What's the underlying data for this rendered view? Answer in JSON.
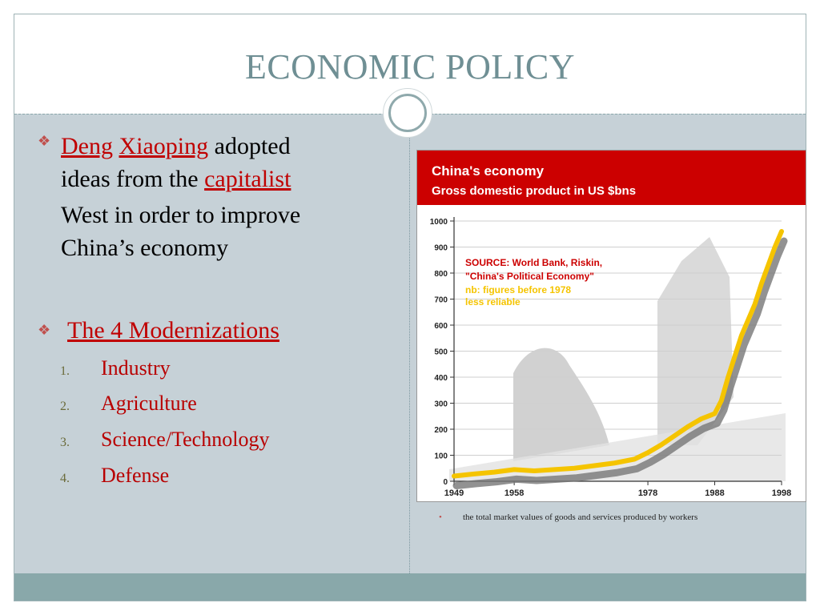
{
  "slide": {
    "title": "ECONOMIC POLICY",
    "bullet1": {
      "name1": "Deng",
      "name2": "Xiaoping",
      "text_a": " adopted",
      "line2_a": "ideas from the ",
      "capitalist": "capitalist",
      "line3": "West in order to improve",
      "line4": "China’s economy"
    },
    "bullet2": {
      "heading": "The 4 Modernizations",
      "items": [
        {
          "num": "1.",
          "label": "Industry"
        },
        {
          "num": "2.",
          "label": "Agriculture"
        },
        {
          "num": "3.",
          "label": "Science/Technology"
        },
        {
          "num": "4.",
          "label": "Defense"
        }
      ]
    },
    "caption": "the total market values of goods and services produced by workers",
    "colors": {
      "accent": "#c00000",
      "title": "#6f8f94",
      "body_bg": "#c6d1d7",
      "footer": "#89a8aa"
    }
  },
  "chart_data": {
    "type": "line",
    "title": "China's economy",
    "subtitle": "Gross domestic product in US $bns",
    "x_ticks": [
      "1949",
      "1958",
      "1978",
      "1988",
      "1998"
    ],
    "y_ticks": [
      "0",
      "100",
      "200",
      "300",
      "400",
      "500",
      "600",
      "700",
      "800",
      "900",
      "1000"
    ],
    "ylim": [
      0,
      1000
    ],
    "xlim": [
      1949,
      1998
    ],
    "source_lines": [
      "SOURCE: World Bank, Riskin,",
      "\"China's Political Economy\""
    ],
    "note_lines": [
      "nb: figures before 1978",
      "less reliable"
    ],
    "series": [
      {
        "color": "#f5c400",
        "x": [
          1949,
          1952,
          1955,
          1958,
          1961,
          1964,
          1967,
          1970,
          1973,
          1976,
          1978,
          1980,
          1982,
          1984,
          1986,
          1988,
          1989,
          1990,
          1991,
          1992,
          1993,
          1994,
          1995,
          1996,
          1997,
          1998
        ],
        "y": [
          20,
          28,
          35,
          45,
          40,
          45,
          50,
          60,
          70,
          85,
          110,
          140,
          175,
          210,
          240,
          260,
          310,
          400,
          480,
          560,
          620,
          680,
          760,
          830,
          900,
          960
        ]
      }
    ]
  }
}
